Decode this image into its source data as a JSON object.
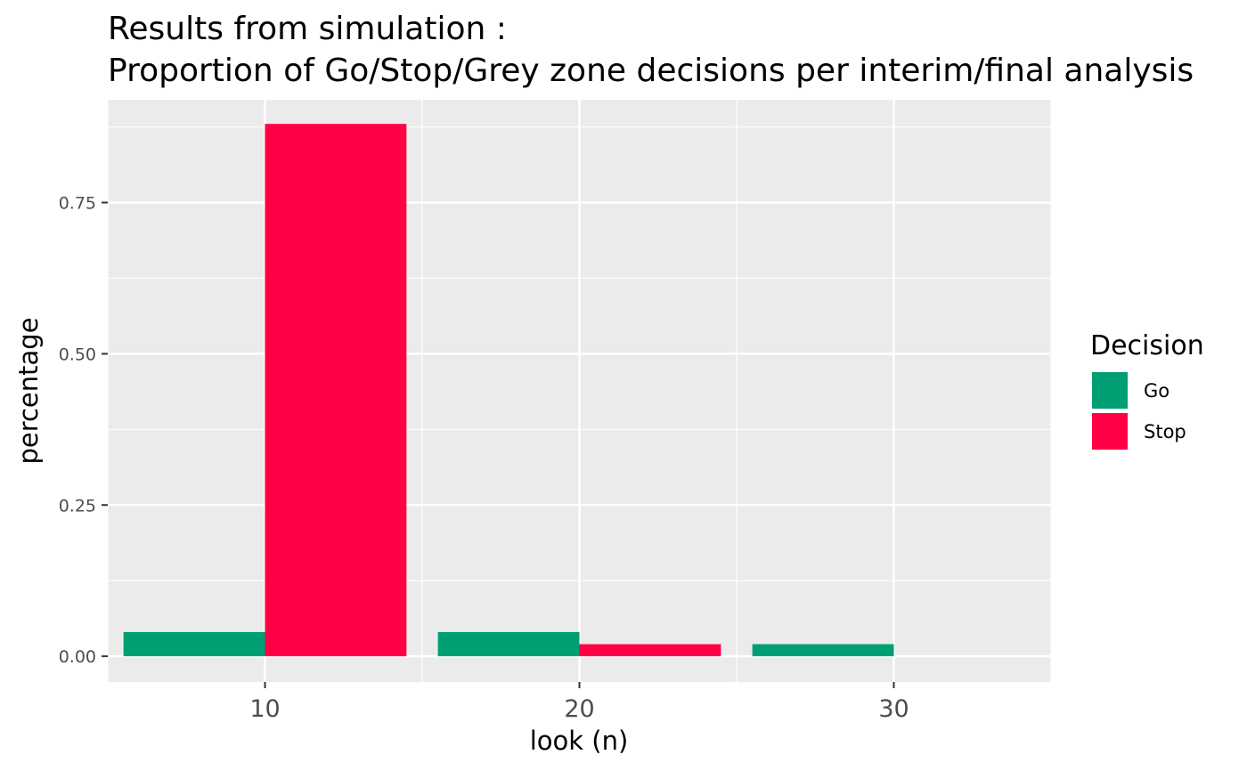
{
  "chart_data": {
    "type": "bar",
    "title_line1": "Results from simulation :",
    "title_line2": "Proportion of Go/Stop/Grey zone decisions per interim/final analysis",
    "xlabel": "look (n)",
    "ylabel": "percentage",
    "categories": [
      10,
      20,
      30
    ],
    "x_ticks": [
      10,
      20,
      30
    ],
    "x_tick_labels": [
      "10",
      "20",
      "30"
    ],
    "xlim": [
      5,
      35
    ],
    "y_ticks": [
      0,
      0.25,
      0.5,
      0.75
    ],
    "y_tick_labels": [
      "0.00",
      "0.25",
      "0.50",
      "0.75"
    ],
    "ylim": [
      -0.0425,
      0.92
    ],
    "grid": true,
    "legend": {
      "title": "Decision",
      "placement": "right"
    },
    "series": [
      {
        "name": "Go",
        "color": "#009E73",
        "values": [
          0.04,
          0.04,
          0.02
        ]
      },
      {
        "name": "Stop",
        "color": "#FF0045",
        "values": [
          0.88,
          0.02,
          0
        ]
      }
    ]
  }
}
